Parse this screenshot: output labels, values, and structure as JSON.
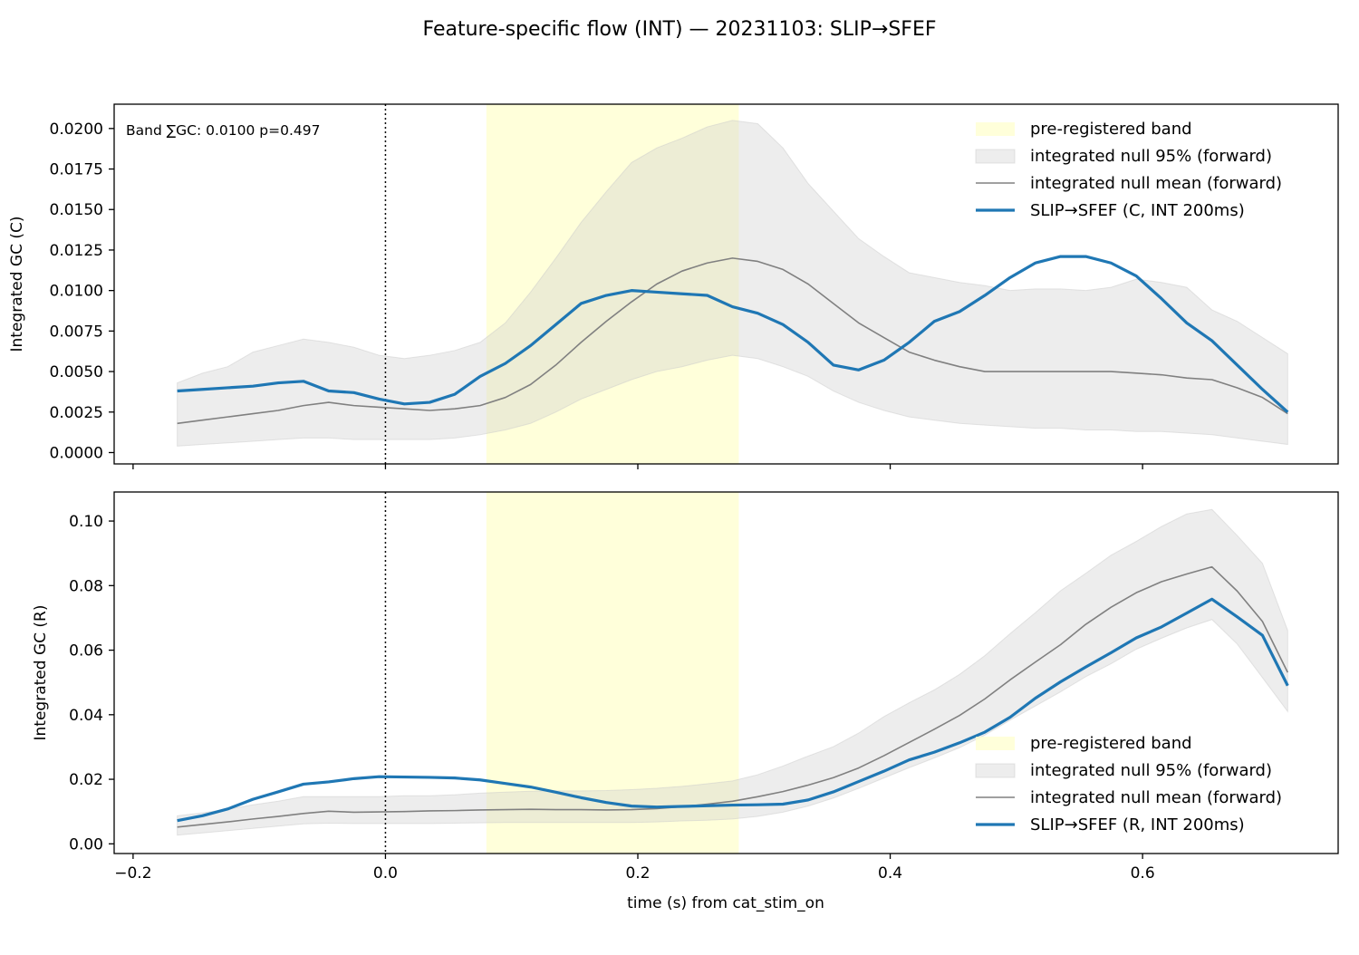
{
  "title": "Feature-specific flow (INT) — 20231103: SLIP→SFEF",
  "xlabel": "time (s) from cat_stim_on",
  "colors": {
    "band": "#ffffcc",
    "null_fill": "#cccccc",
    "null_mean": "#808080",
    "series": "#1f77b4"
  },
  "chart_data": [
    {
      "type": "line",
      "ylabel": "Integrated GC (C)",
      "annotation": "Band ∑GC: 0.0100  p=0.497",
      "xlim": [
        -0.215,
        0.755
      ],
      "ylim": [
        -0.0007,
        0.0215
      ],
      "xticks": [
        -0.2,
        0.0,
        0.2,
        0.4,
        0.6
      ],
      "xtick_labels": [],
      "yticks": [
        0.0,
        0.0025,
        0.005,
        0.0075,
        0.01,
        0.0125,
        0.015,
        0.0175,
        0.02
      ],
      "ytick_labels": [
        "0.0000",
        "0.0025",
        "0.0050",
        "0.0075",
        "0.0100",
        "0.0125",
        "0.0150",
        "0.0175",
        "0.0200"
      ],
      "band": [
        0.08,
        0.28
      ],
      "vline": 0.0,
      "legend_position": "upper-right",
      "legend": [
        "pre-registered band",
        "integrated null 95% (forward)",
        "integrated null mean (forward)",
        "SLIP→SFEF (C, INT 200ms)"
      ],
      "x": [
        -0.165,
        -0.145,
        -0.125,
        -0.105,
        -0.085,
        -0.065,
        -0.045,
        -0.025,
        -0.005,
        0.015,
        0.035,
        0.055,
        0.075,
        0.095,
        0.115,
        0.135,
        0.155,
        0.175,
        0.195,
        0.215,
        0.235,
        0.255,
        0.275,
        0.295,
        0.315,
        0.335,
        0.355,
        0.375,
        0.395,
        0.415,
        0.435,
        0.455,
        0.475,
        0.495,
        0.515,
        0.535,
        0.555,
        0.575,
        0.595,
        0.615,
        0.635,
        0.655,
        0.675,
        0.695,
        0.715
      ],
      "series": [
        {
          "name": "SLIP→SFEF (C, INT 200ms)",
          "values": [
            0.0038,
            0.0039,
            0.004,
            0.0041,
            0.0043,
            0.0044,
            0.0038,
            0.0037,
            0.0033,
            0.003,
            0.0031,
            0.0036,
            0.0047,
            0.0055,
            0.0066,
            0.0079,
            0.0092,
            0.0097,
            0.01,
            0.0099,
            0.0098,
            0.0097,
            0.009,
            0.0086,
            0.0079,
            0.0068,
            0.0054,
            0.0051,
            0.0057,
            0.0068,
            0.0081,
            0.0087,
            0.0097,
            0.0108,
            0.0117,
            0.0121,
            0.0121,
            0.0117,
            0.0109,
            0.0095,
            0.008,
            0.0069,
            0.0054,
            0.0039,
            0.0025
          ]
        },
        {
          "name": "integrated null mean (forward)",
          "values": [
            0.0018,
            0.002,
            0.0022,
            0.0024,
            0.0026,
            0.0029,
            0.0031,
            0.0029,
            0.0028,
            0.0027,
            0.0026,
            0.0027,
            0.0029,
            0.0034,
            0.0042,
            0.0054,
            0.0068,
            0.0081,
            0.0093,
            0.0104,
            0.0112,
            0.0117,
            0.012,
            0.0118,
            0.0113,
            0.0104,
            0.0092,
            0.008,
            0.0071,
            0.0062,
            0.0057,
            0.0053,
            0.005,
            0.005,
            0.005,
            0.005,
            0.005,
            0.005,
            0.0049,
            0.0048,
            0.0046,
            0.0045,
            0.004,
            0.0034,
            0.0024
          ]
        }
      ],
      "null_lower": [
        0.0004,
        0.0005,
        0.0006,
        0.0007,
        0.0008,
        0.0009,
        0.0009,
        0.0008,
        0.0008,
        0.0008,
        0.0008,
        0.0009,
        0.0011,
        0.0014,
        0.0018,
        0.0025,
        0.0033,
        0.0039,
        0.0045,
        0.005,
        0.0053,
        0.0057,
        0.006,
        0.0058,
        0.0053,
        0.0047,
        0.0038,
        0.0031,
        0.0026,
        0.0022,
        0.002,
        0.0018,
        0.0017,
        0.0016,
        0.0015,
        0.0015,
        0.0014,
        0.0014,
        0.0013,
        0.0013,
        0.0012,
        0.0011,
        0.0009,
        0.0007,
        0.0005
      ],
      "null_upper": [
        0.0043,
        0.0049,
        0.0053,
        0.0062,
        0.0066,
        0.007,
        0.0068,
        0.0065,
        0.006,
        0.0058,
        0.006,
        0.0063,
        0.0068,
        0.008,
        0.0099,
        0.012,
        0.0142,
        0.0161,
        0.0179,
        0.0188,
        0.0194,
        0.0201,
        0.0205,
        0.0203,
        0.0188,
        0.0166,
        0.0149,
        0.0132,
        0.0121,
        0.0111,
        0.0108,
        0.0105,
        0.0103,
        0.01,
        0.0101,
        0.0101,
        0.01,
        0.0102,
        0.0107,
        0.0105,
        0.0102,
        0.0088,
        0.0081,
        0.0071,
        0.0061
      ]
    },
    {
      "type": "line",
      "ylabel": "Integrated GC (R)",
      "xlim": [
        -0.215,
        0.755
      ],
      "ylim": [
        -0.003,
        0.109
      ],
      "xticks": [
        -0.2,
        0.0,
        0.2,
        0.4,
        0.6
      ],
      "xtick_labels": [
        "−0.2",
        "0.0",
        "0.2",
        "0.4",
        "0.6"
      ],
      "yticks": [
        0.0,
        0.02,
        0.04,
        0.06,
        0.08,
        0.1
      ],
      "ytick_labels": [
        "0.00",
        "0.02",
        "0.04",
        "0.06",
        "0.08",
        "0.10"
      ],
      "band": [
        0.08,
        0.28
      ],
      "vline": 0.0,
      "legend_position": "lower-right",
      "legend": [
        "pre-registered band",
        "integrated null 95% (forward)",
        "integrated null mean (forward)",
        "SLIP→SFEF (R, INT 200ms)"
      ],
      "x": [
        -0.165,
        -0.145,
        -0.125,
        -0.105,
        -0.085,
        -0.065,
        -0.045,
        -0.025,
        -0.005,
        0.015,
        0.035,
        0.055,
        0.075,
        0.095,
        0.115,
        0.135,
        0.155,
        0.175,
        0.195,
        0.215,
        0.235,
        0.255,
        0.275,
        0.295,
        0.315,
        0.335,
        0.355,
        0.375,
        0.395,
        0.415,
        0.435,
        0.455,
        0.475,
        0.495,
        0.515,
        0.535,
        0.555,
        0.575,
        0.595,
        0.615,
        0.635,
        0.655,
        0.675,
        0.695,
        0.715
      ],
      "series": [
        {
          "name": "SLIP→SFEF (R, INT 200ms)",
          "values": [
            0.0072,
            0.0087,
            0.0108,
            0.0138,
            0.0161,
            0.0185,
            0.0192,
            0.0202,
            0.0208,
            0.0207,
            0.0206,
            0.0204,
            0.0198,
            0.0187,
            0.0176,
            0.016,
            0.0143,
            0.0128,
            0.0117,
            0.0114,
            0.0116,
            0.0118,
            0.012,
            0.0121,
            0.0123,
            0.0136,
            0.0161,
            0.0193,
            0.0225,
            0.026,
            0.0284,
            0.0313,
            0.0346,
            0.0392,
            0.0451,
            0.0502,
            0.0548,
            0.0592,
            0.0638,
            0.0672,
            0.0715,
            0.0758,
            0.0703,
            0.0646,
            0.049
          ]
        },
        {
          "name": "integrated null mean (forward)",
          "values": [
            0.0052,
            0.006,
            0.0068,
            0.0077,
            0.0085,
            0.0094,
            0.0101,
            0.0098,
            0.0099,
            0.01,
            0.0102,
            0.0103,
            0.0105,
            0.0106,
            0.0107,
            0.0106,
            0.0106,
            0.0105,
            0.0106,
            0.0109,
            0.0115,
            0.0123,
            0.0132,
            0.0146,
            0.0162,
            0.0182,
            0.0205,
            0.0235,
            0.0273,
            0.0314,
            0.0355,
            0.0398,
            0.0449,
            0.0508,
            0.0563,
            0.0617,
            0.068,
            0.0733,
            0.0778,
            0.0812,
            0.0836,
            0.0858,
            0.0783,
            0.0689,
            0.0531
          ]
        }
      ],
      "null_lower": [
        0.0027,
        0.0034,
        0.0041,
        0.0048,
        0.0055,
        0.0062,
        0.0064,
        0.0063,
        0.0063,
        0.0063,
        0.0063,
        0.0064,
        0.0065,
        0.0066,
        0.0066,
        0.0066,
        0.0066,
        0.0066,
        0.0066,
        0.0068,
        0.0071,
        0.0073,
        0.0077,
        0.0085,
        0.0098,
        0.0117,
        0.0142,
        0.0172,
        0.0204,
        0.0236,
        0.0266,
        0.0298,
        0.0337,
        0.0383,
        0.0427,
        0.0471,
        0.0518,
        0.0558,
        0.0603,
        0.0637,
        0.0669,
        0.0695,
        0.0619,
        0.0515,
        0.041
      ],
      "null_upper": [
        0.0087,
        0.0096,
        0.0107,
        0.0121,
        0.0132,
        0.0146,
        0.0146,
        0.0146,
        0.0146,
        0.0149,
        0.0149,
        0.0152,
        0.0157,
        0.016,
        0.0163,
        0.0164,
        0.0164,
        0.0165,
        0.0168,
        0.0172,
        0.0178,
        0.0186,
        0.0195,
        0.0214,
        0.0241,
        0.0272,
        0.0301,
        0.0343,
        0.0394,
        0.0437,
        0.0477,
        0.0525,
        0.0583,
        0.0651,
        0.0716,
        0.0784,
        0.0838,
        0.0894,
        0.0937,
        0.0983,
        0.1022,
        0.1036,
        0.0955,
        0.0869,
        0.0661
      ]
    }
  ]
}
